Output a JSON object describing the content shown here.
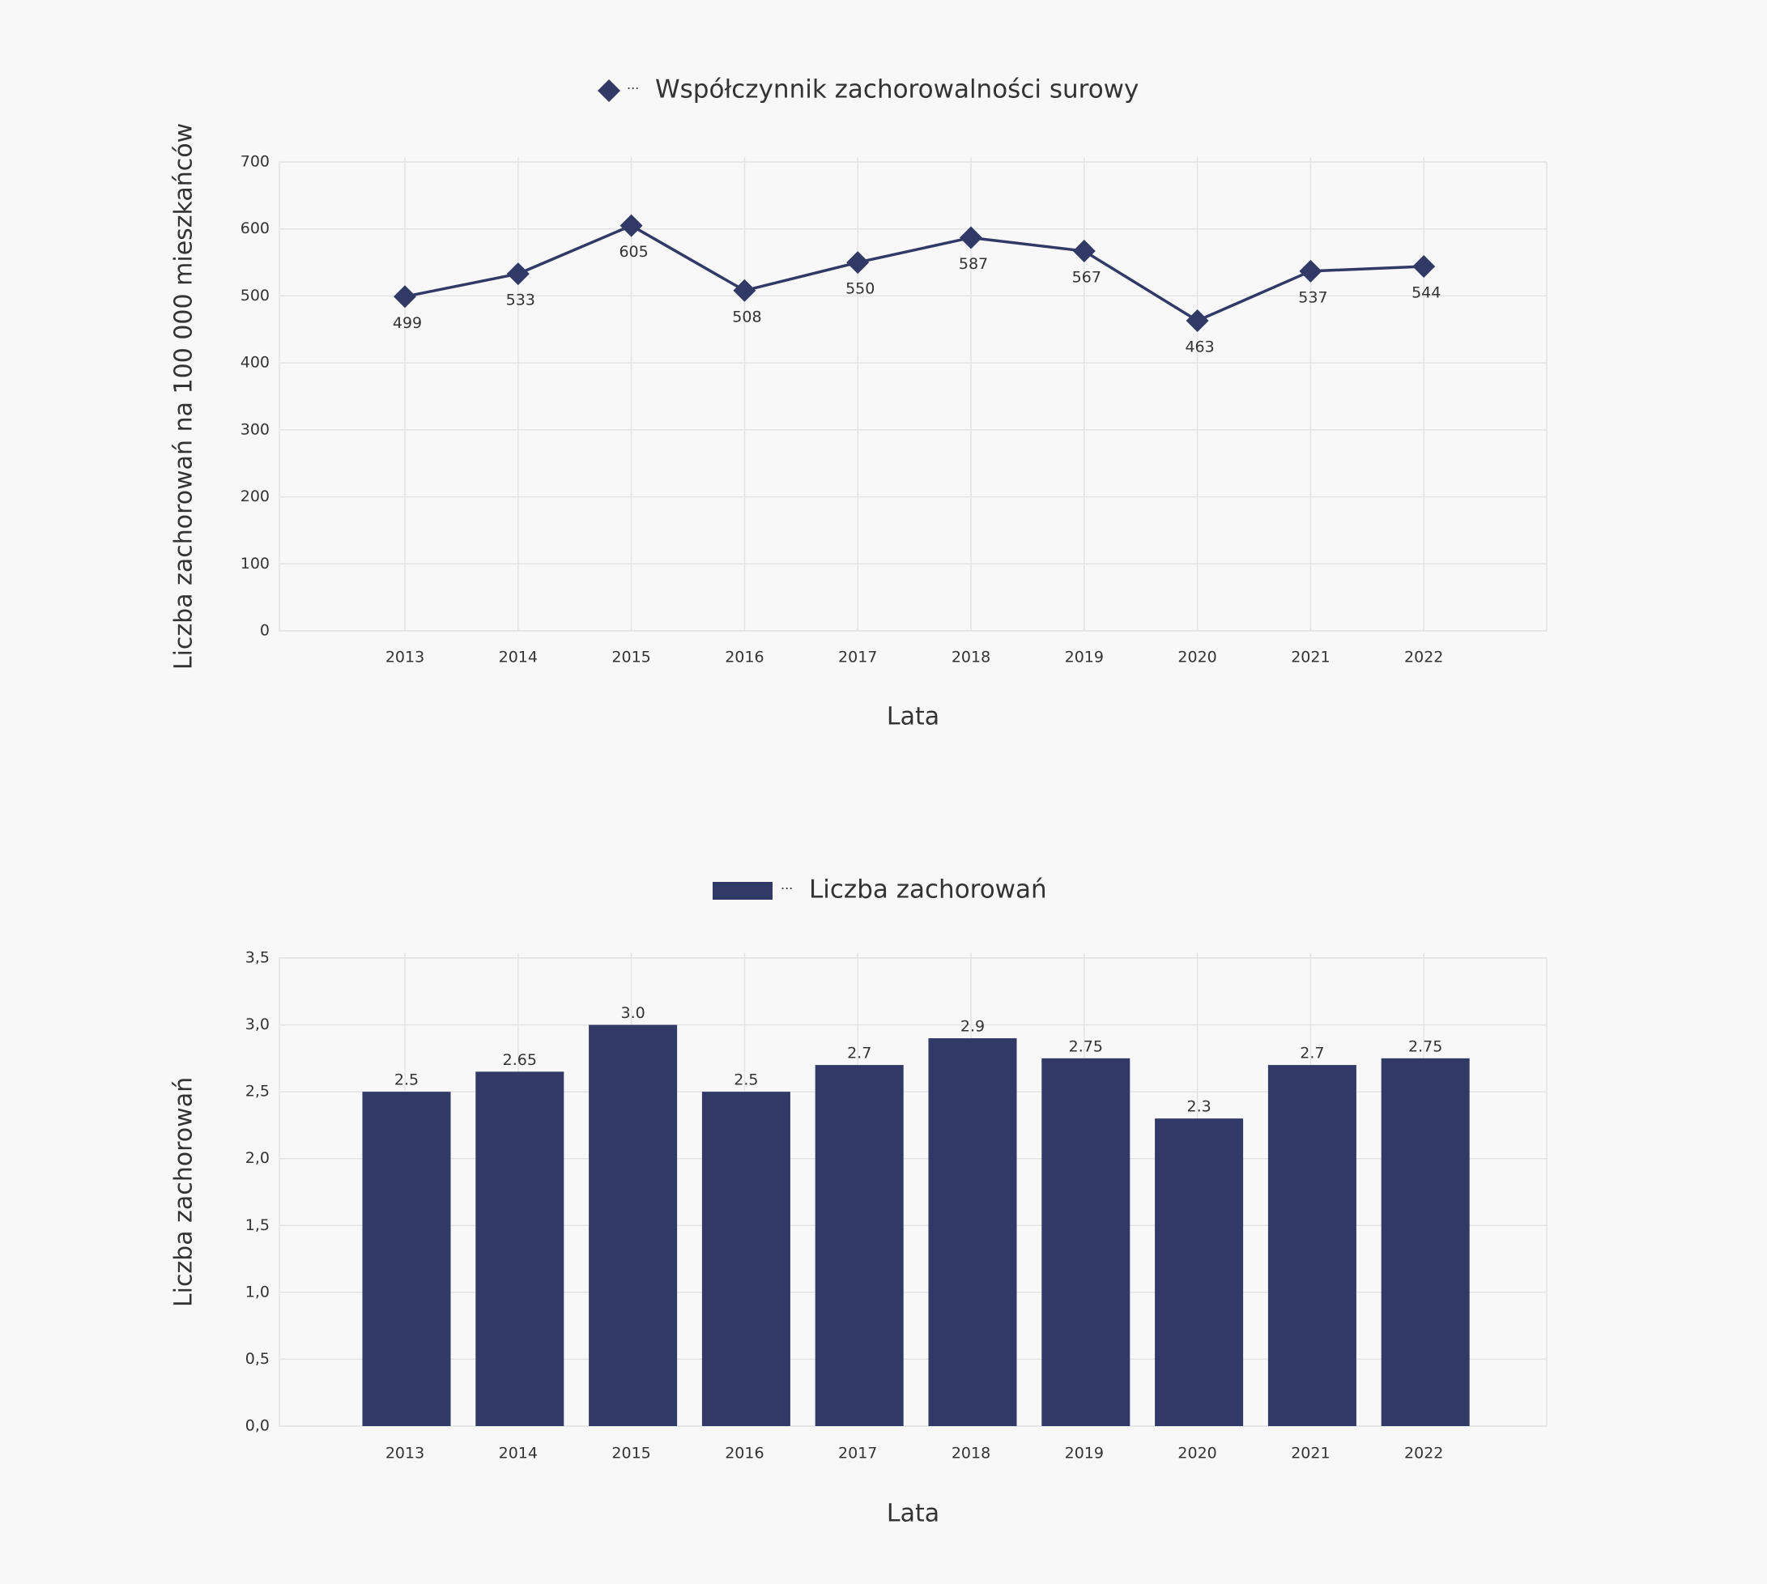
{
  "chart_data": [
    {
      "type": "line",
      "xlabel": "Lata",
      "ylabel": "Liczba zachorowań na 100 000 mieszkańców",
      "categories": [
        "2013",
        "2014",
        "2015",
        "2016",
        "2017",
        "2018",
        "2019",
        "2020",
        "2021",
        "2022"
      ],
      "series": [
        {
          "name": "Współczynnik zachorowalności surowy",
          "color": "#313966",
          "values": [
            499,
            533,
            605,
            508,
            550,
            587,
            567,
            463,
            537,
            544
          ]
        }
      ],
      "ylim": [
        0,
        700
      ],
      "yticks": [
        0,
        100,
        200,
        300,
        400,
        500,
        600,
        700
      ],
      "grid": true,
      "legend": "top"
    },
    {
      "type": "bar",
      "xlabel": "Lata",
      "ylabel": "Liczba zachorowań",
      "categories": [
        "2013",
        "2014",
        "2015",
        "2016",
        "2017",
        "2018",
        "2019",
        "2020",
        "2021",
        "2022"
      ],
      "series": [
        {
          "name": "Liczba zachorowań",
          "color": "#313966",
          "values": [
            2.5,
            2.65,
            3,
            2.5,
            2.7,
            2.9,
            2.75,
            2.3,
            2.7,
            2.75
          ],
          "value_labels": [
            "2.5",
            "2.65",
            "3.0",
            "2.5",
            "2.7",
            "2.9",
            "2.75",
            "2.3",
            "2.7",
            "2.75"
          ]
        }
      ],
      "ylim": [
        0,
        3.5
      ],
      "yticks": [
        {
          "value": 0,
          "label": "0,0"
        },
        {
          "value": 0.5,
          "label": "0,5"
        },
        {
          "value": 1,
          "label": "1,0"
        },
        {
          "value": 1.5,
          "label": "1,5"
        },
        {
          "value": 2,
          "label": "2,0"
        },
        {
          "value": 2.5,
          "label": "2,5"
        },
        {
          "value": 3,
          "label": "3,0"
        },
        {
          "value": 3.5,
          "label": "3,5"
        }
      ],
      "grid": true,
      "legend": "top"
    }
  ]
}
